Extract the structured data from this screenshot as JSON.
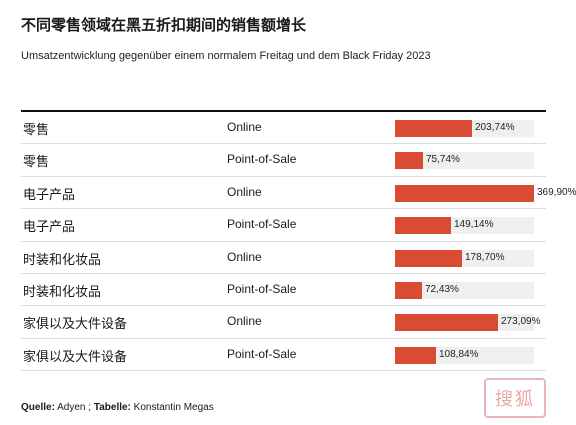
{
  "header": {
    "title": "不同零售领域在黑五折扣期间的销售额增长",
    "subtitle": "Umsatzentwicklung gegenüber einem normalem Freitag und dem Black Friday 2023"
  },
  "footer": {
    "source_label": "Quelle:",
    "source": "Adyen",
    "separator": " ; ",
    "table_label": "Tabelle:",
    "author": "Konstantin Megas"
  },
  "watermark": {
    "text": "搜狐"
  },
  "colors": {
    "bar": "#d94c33",
    "track": "#efefef",
    "rule": "#111111"
  },
  "chart_data": {
    "type": "table",
    "unit": "%",
    "xlim": [
      0,
      369.9
    ],
    "rows": [
      {
        "category": "零售",
        "channel": "Online",
        "value": 203.74,
        "label": "203,74%"
      },
      {
        "category": "零售",
        "channel": "Point-of-Sale",
        "value": 75.74,
        "label": "75,74%"
      },
      {
        "category": "电子产品",
        "channel": "Online",
        "value": 369.9,
        "label": "369,90%"
      },
      {
        "category": "电子产品",
        "channel": "Point-of-Sale",
        "value": 149.14,
        "label": "149,14%"
      },
      {
        "category": "时装和化妆品",
        "channel": "Online",
        "value": 178.7,
        "label": "178,70%"
      },
      {
        "category": "时装和化妆品",
        "channel": "Point-of-Sale",
        "value": 72.43,
        "label": "72,43%"
      },
      {
        "category": "家俱以及大件设备",
        "channel": "Online",
        "value": 273.09,
        "label": "273,09%"
      },
      {
        "category": "家俱以及大件设备",
        "channel": "Point-of-Sale",
        "value": 108.84,
        "label": "108,84%"
      }
    ]
  }
}
